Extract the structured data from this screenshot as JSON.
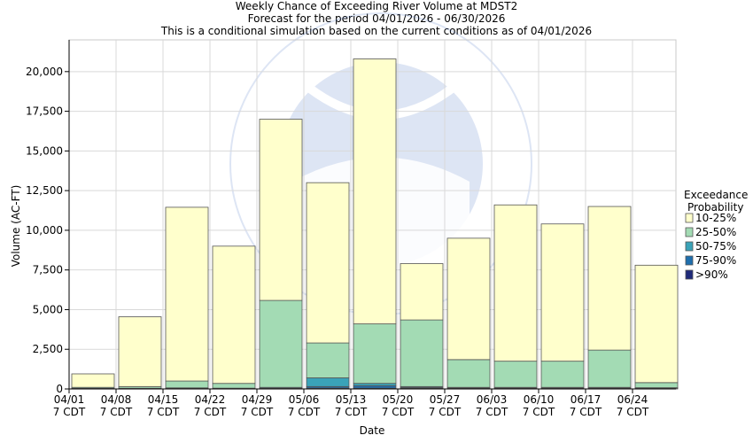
{
  "chart_data": {
    "type": "bar",
    "stacked": true,
    "title_lines": [
      "Weekly Chance of Exceeding River Volume at MDST2",
      "Forecast for the period 04/01/2026 - 06/30/2026",
      "This is a conditional simulation based on the current conditions as of 04/01/2026"
    ],
    "xlabel": "Date",
    "ylabel": "Volume (AC-FT)",
    "ylim": [
      0,
      22000
    ],
    "yticks": [
      0,
      2500,
      5000,
      7500,
      10000,
      12500,
      15000,
      17500,
      20000
    ],
    "ytick_labels": [
      "0",
      "2,500",
      "5,000",
      "7,500",
      "10,000",
      "12,500",
      "15,000",
      "17,500",
      "20,000"
    ],
    "categories": [
      "04/01",
      "04/08",
      "04/15",
      "04/22",
      "04/29",
      "05/06",
      "05/13",
      "05/20",
      "05/27",
      "06/03",
      "06/10",
      "06/17",
      "06/24"
    ],
    "category_sub": "7 CDT",
    "grid": true,
    "legend": {
      "title_lines": [
        "Exceedance",
        "Probability"
      ],
      "placement": "right"
    },
    "series": [
      {
        "name": ">90%",
        "color": "#1f2a7a",
        "values": [
          10,
          10,
          20,
          10,
          20,
          50,
          50,
          50,
          40,
          40,
          40,
          40,
          30
        ]
      },
      {
        "name": "75-90%",
        "color": "#1f6fae",
        "values": [
          10,
          10,
          20,
          10,
          30,
          100,
          150,
          50,
          40,
          40,
          40,
          40,
          30
        ]
      },
      {
        "name": "50-75%",
        "color": "#3aa3b8",
        "values": [
          20,
          20,
          30,
          30,
          50,
          550,
          150,
          50,
          20,
          20,
          20,
          20,
          20
        ]
      },
      {
        "name": "25-50%",
        "color": "#a3dbb4",
        "values": [
          60,
          110,
          430,
          300,
          5480,
          2200,
          3750,
          4200,
          1750,
          1650,
          1650,
          2350,
          320
        ]
      },
      {
        "name": "10-25%",
        "color": "#ffffcc",
        "values": [
          850,
          4400,
          10950,
          8650,
          11420,
          10100,
          16700,
          3550,
          7650,
          9850,
          8650,
          9050,
          7400
        ]
      }
    ],
    "legend_order": [
      "10-25%",
      "25-50%",
      "50-75%",
      "75-90%",
      ">90%"
    ]
  }
}
